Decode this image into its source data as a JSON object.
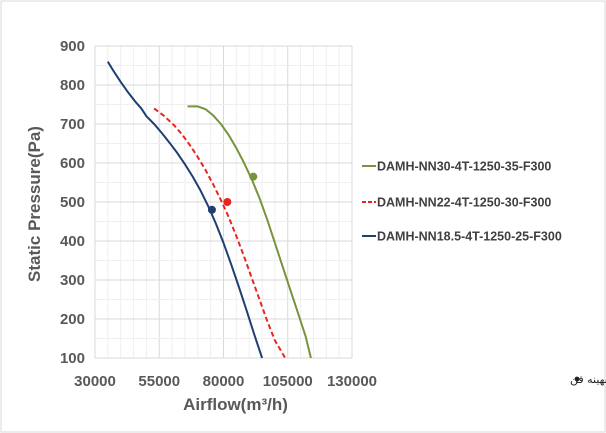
{
  "chart_data": {
    "type": "line",
    "title": "",
    "xlabel": "Airflow(m³/h)",
    "ylabel": "Static Pressure(Pa)",
    "xlim": [
      30000,
      130000
    ],
    "ylim": [
      100,
      900
    ],
    "xticks": [
      30000,
      55000,
      80000,
      105000,
      130000
    ],
    "xtick_labels": [
      "30000",
      "55000",
      "80000",
      "105000",
      "130000"
    ],
    "yticks": [
      100,
      200,
      300,
      400,
      500,
      600,
      700,
      800,
      900
    ],
    "ytick_labels": [
      "100",
      "200",
      "300",
      "400",
      "500",
      "600",
      "700",
      "800",
      "900"
    ],
    "grid": true,
    "legend_position": "right",
    "series": [
      {
        "name": "DAMH-NN30-4T-1250-35-F300",
        "color": "#77933C",
        "style": "solid",
        "x": [
          66000,
          70000,
          73000,
          76000,
          79000,
          82000,
          85000,
          88000,
          91000,
          94000,
          97000,
          100000,
          103000,
          106000,
          109000,
          112000,
          114000
        ],
        "y": [
          745,
          745,
          738,
          722,
          700,
          672,
          638,
          600,
          558,
          510,
          455,
          395,
          335,
          275,
          215,
          155,
          100
        ],
        "optimal_point": [
          91600,
          565
        ]
      },
      {
        "name": "DAMH-NN22-4T-1250-30-F300",
        "color": "#E8261F",
        "style": "dashed",
        "x": [
          53000,
          57000,
          61000,
          64000,
          67000,
          70000,
          73000,
          76000,
          79000,
          82000,
          85000,
          88000,
          91000,
          94000,
          97000,
          100000,
          104000
        ],
        "y": [
          740,
          720,
          695,
          672,
          645,
          615,
          582,
          545,
          505,
          462,
          412,
          360,
          305,
          250,
          195,
          145,
          100
        ],
        "optimal_point": [
          81500,
          500
        ]
      },
      {
        "name": "DAMH-NN18.5-4T-1250-25-F300",
        "color": "#1F3F73",
        "style": "solid",
        "x": [
          35000,
          37000,
          40000,
          43000,
          46000,
          48000,
          50000,
          53000,
          56000,
          59000,
          62000,
          65000,
          68000,
          71000,
          74000,
          77000,
          80000,
          83000,
          86000,
          89000,
          92000,
          95000
        ],
        "y": [
          860,
          838,
          808,
          780,
          755,
          740,
          720,
          700,
          677,
          652,
          626,
          597,
          565,
          530,
          490,
          445,
          395,
          340,
          282,
          222,
          160,
          100
        ],
        "optimal_point": [
          75500,
          480
        ]
      }
    ],
    "annotation": "نقطه عملکرد بهینه فن"
  }
}
